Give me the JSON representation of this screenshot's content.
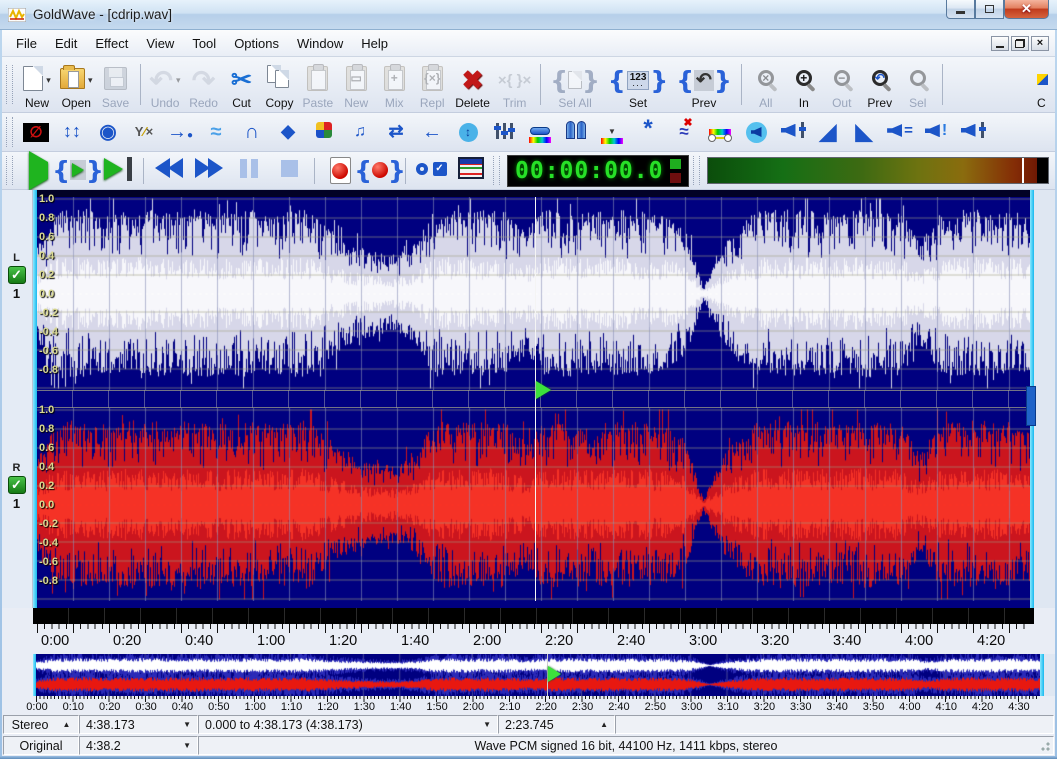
{
  "window": {
    "title": "GoldWave - [cdrip.wav]"
  },
  "menu": {
    "items": [
      "File",
      "Edit",
      "Effect",
      "View",
      "Tool",
      "Options",
      "Window",
      "Help"
    ]
  },
  "toolbar_main": {
    "items": [
      {
        "label": "New",
        "icon": "new-page-icon",
        "enabled": true,
        "dropdown": true
      },
      {
        "label": "Open",
        "icon": "open-folder-icon",
        "enabled": true,
        "dropdown": true
      },
      {
        "label": "Save",
        "icon": "save-icon",
        "enabled": false
      },
      {
        "sep": true
      },
      {
        "label": "Undo",
        "icon": "undo-icon",
        "enabled": false,
        "dropdown": true
      },
      {
        "label": "Redo",
        "icon": "redo-icon",
        "enabled": false
      },
      {
        "label": "Cut",
        "icon": "cut-icon",
        "enabled": true
      },
      {
        "label": "Copy",
        "icon": "copy-icon",
        "enabled": true
      },
      {
        "label": "Paste",
        "icon": "paste-icon",
        "enabled": false
      },
      {
        "label": "New",
        "icon": "paste-new-icon",
        "enabled": false
      },
      {
        "label": "Mix",
        "icon": "mix-icon",
        "enabled": false
      },
      {
        "label": "Repl",
        "icon": "replace-icon",
        "enabled": false
      },
      {
        "label": "Delete",
        "icon": "delete-icon",
        "enabled": true
      },
      {
        "label": "Trim",
        "icon": "trim-icon",
        "enabled": false
      },
      {
        "sep": true
      },
      {
        "label": "Sel All",
        "icon": "select-all-icon",
        "enabled": false
      },
      {
        "label": "Set",
        "icon": "set-selection-icon",
        "enabled": true
      },
      {
        "label": "Prev",
        "icon": "previous-selection-icon",
        "enabled": true
      },
      {
        "sep": true
      },
      {
        "label": "All",
        "icon": "zoom-all-icon",
        "enabled": false
      },
      {
        "label": "In",
        "icon": "zoom-in-icon",
        "enabled": true
      },
      {
        "label": "Out",
        "icon": "zoom-out-icon",
        "enabled": false
      },
      {
        "label": "Prev",
        "icon": "zoom-previous-icon",
        "enabled": true
      },
      {
        "label": "Sel",
        "icon": "zoom-selection-icon",
        "enabled": false
      },
      {
        "sep": true
      },
      {
        "label": "C",
        "icon": "cue-icon",
        "enabled": true,
        "partial": true
      }
    ]
  },
  "toolbar_effects": {
    "icons": [
      "no-entry-icon",
      "up-down-arrows-icon",
      "sphere-icon",
      "xy-expression-icon",
      "arrow-dot-icon",
      "wave-icon",
      "u-turn-icon",
      "diamond-icon",
      "pinwheel-icon",
      "music-note-icon",
      "swap-arrows-icon",
      "left-arrow-icon",
      "circle-up-down-icon",
      "equalizer-icon",
      "pill-rainbow-icon",
      "doors-icon",
      "rainbow-picker-icon",
      "burst-icon",
      "wave-x-icon",
      "rainbow-nodes-icon",
      "speaker-circle-icon",
      "speaker-slider-icon",
      "fade-in-icon",
      "fade-out-icon",
      "speaker-equals-icon",
      "speaker-exclaim-icon",
      "speaker-envelope-icon"
    ]
  },
  "transport": {
    "buttons": [
      {
        "name": "play",
        "icon": "play-icon",
        "enabled": true
      },
      {
        "name": "play-selection",
        "icon": "play-selection-icon",
        "enabled": true
      },
      {
        "name": "play-to-end",
        "icon": "play-to-end-icon",
        "enabled": true
      },
      {
        "sep": true
      },
      {
        "name": "rewind",
        "icon": "rewind-icon",
        "enabled": true
      },
      {
        "name": "fast-forward",
        "icon": "fast-forward-icon",
        "enabled": true
      },
      {
        "name": "pause",
        "icon": "pause-icon",
        "enabled": false
      },
      {
        "name": "stop",
        "icon": "stop-icon",
        "enabled": false
      },
      {
        "sep": true
      },
      {
        "name": "record",
        "icon": "record-icon",
        "enabled": true
      },
      {
        "name": "record-selection",
        "icon": "record-selection-icon",
        "enabled": true
      },
      {
        "sep": true
      },
      {
        "name": "record-monitor",
        "icon": "monitor-icon",
        "enabled": true
      },
      {
        "name": "control-properties",
        "icon": "properties-icon",
        "enabled": true
      }
    ],
    "time_display": "00:00:00.0"
  },
  "waveform": {
    "channels": [
      {
        "label": "L",
        "track_number": "1"
      },
      {
        "label": "R",
        "track_number": "1"
      }
    ],
    "amplitude_labels": [
      "1.0",
      "0.8",
      "0.6",
      "0.4",
      "0.2",
      "0.0",
      "-0.2",
      "-0.4",
      "-0.6",
      "-0.8"
    ],
    "timeline_labels": [
      "0:00",
      "0:20",
      "0:40",
      "1:00",
      "1:20",
      "1:40",
      "2:00",
      "2:20",
      "2:40",
      "3:00",
      "3:20",
      "3:40",
      "4:00",
      "4:20"
    ],
    "envelope": [
      0.5,
      0.88,
      0.92,
      0.9,
      0.86,
      0.91,
      0.93,
      0.89,
      0.9,
      0.92,
      0.88,
      0.9,
      0.91,
      0.87,
      0.9,
      0.92,
      0.75,
      0.6,
      0.5,
      0.45,
      0.42,
      0.55,
      0.9,
      0.92,
      0.88,
      0.91,
      0.9,
      0.7,
      0.9,
      0.92,
      0.9,
      0.88,
      0.91,
      0.9,
      0.88,
      0.85,
      0.7,
      0.07,
      0.5,
      0.75,
      0.9,
      0.92,
      0.9,
      0.91,
      0.88,
      0.9,
      0.92,
      0.89,
      0.9,
      0.55,
      0.85,
      0.9,
      0.92,
      0.88,
      0.9,
      0.85
    ]
  },
  "overview": {
    "timeline_labels": [
      "0:00",
      "0:10",
      "0:20",
      "0:30",
      "0:40",
      "0:50",
      "1:00",
      "1:10",
      "1:20",
      "1:30",
      "1:40",
      "1:50",
      "2:00",
      "2:10",
      "2:20",
      "2:30",
      "2:40",
      "2:50",
      "3:00",
      "3:10",
      "3:20",
      "3:30",
      "3:40",
      "3:50",
      "4:00",
      "4:10",
      "4:20",
      "4:30"
    ]
  },
  "statusbar": {
    "row1": [
      {
        "text": "Stereo",
        "arrow": "▲"
      },
      {
        "text": "4:38.173",
        "arrow": "▼"
      },
      {
        "text": "0.000 to 4:38.173 (4:38.173)",
        "arrow": "▼"
      },
      {
        "text": "2:23.745",
        "arrow": "▲"
      },
      {
        "text": ""
      }
    ],
    "row2": [
      {
        "text": "Original"
      },
      {
        "text": "4:38.2",
        "arrow": "▼"
      },
      {
        "text": "Wave PCM signed 16 bit, 44100 Hz, 1411 kbps, stereo"
      }
    ]
  },
  "colors": {
    "waveform_bg": "#000080",
    "left_channel": "#ffffff",
    "right_channel": "#e81810",
    "selection_marker": "#33ccff",
    "accent_blue": "#1c55c8",
    "time_digits": "#27e027"
  }
}
